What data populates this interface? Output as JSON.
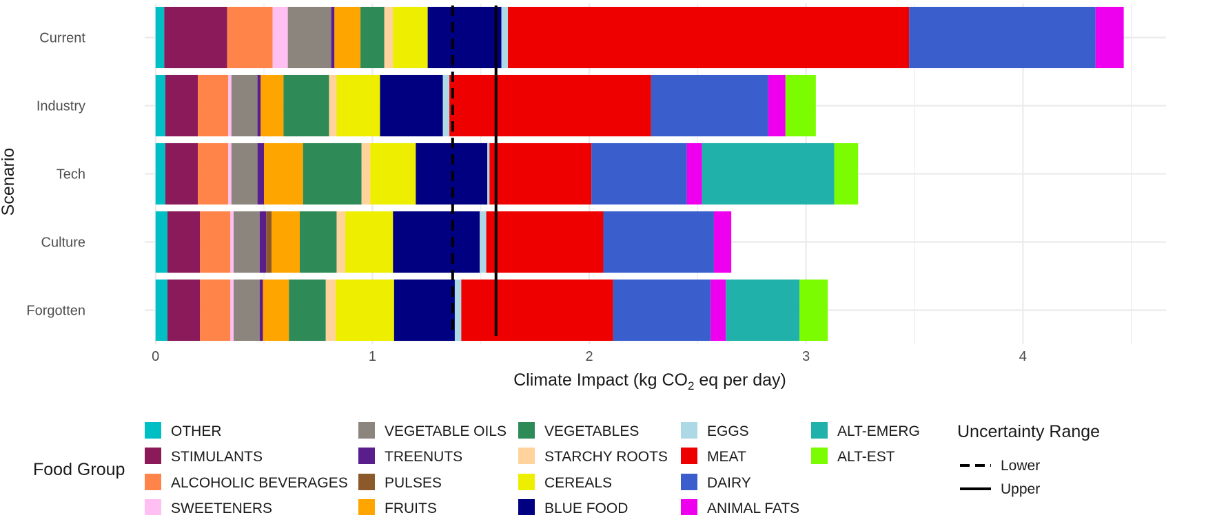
{
  "chart_data": {
    "type": "bar",
    "orientation": "horizontal",
    "stacked": true,
    "xlabel": "Climate Impact (kg CO2 eq per day)",
    "xlabel_parts": {
      "pre": "Climate Impact (kg CO",
      "sub": "2",
      "post": " eq per day)"
    },
    "ylabel": "Scenario",
    "xlim": [
      -0.05,
      4.66
    ],
    "xticks": [
      0,
      1,
      2,
      3,
      4
    ],
    "grid": true,
    "categories": [
      "Current",
      "Industry",
      "Tech",
      "Culture",
      "Forgotten"
    ],
    "series": [
      {
        "name": "OTHER",
        "color": "#00BFC4",
        "values": [
          0.04,
          0.045,
          0.045,
          0.055,
          0.055
        ]
      },
      {
        "name": "STIMULANTS",
        "color": "#8B1A5A",
        "values": [
          0.29,
          0.15,
          0.15,
          0.15,
          0.15
        ]
      },
      {
        "name": "ALCOHOLIC BEVERAGES",
        "color": "#FF8449",
        "values": [
          0.21,
          0.14,
          0.14,
          0.14,
          0.14
        ]
      },
      {
        "name": "SWEETENERS",
        "color": "#FFBFF2",
        "values": [
          0.07,
          0.015,
          0.015,
          0.015,
          0.015
        ]
      },
      {
        "name": "VEGETABLE OILS",
        "color": "#8C857E",
        "values": [
          0.2,
          0.12,
          0.12,
          0.12,
          0.12
        ]
      },
      {
        "name": "TREENUTS",
        "color": "#5A1E8C",
        "values": [
          0.015,
          0.015,
          0.03,
          0.03,
          0.015
        ]
      },
      {
        "name": "PULSES",
        "color": "#8C5A2A",
        "values": [
          0.0,
          0.0,
          0.0,
          0.025,
          0.0
        ]
      },
      {
        "name": "FRUITS",
        "color": "#FFA500",
        "values": [
          0.12,
          0.105,
          0.18,
          0.13,
          0.12
        ]
      },
      {
        "name": "VEGETABLES",
        "color": "#2E8B57",
        "values": [
          0.11,
          0.21,
          0.27,
          0.17,
          0.17
        ]
      },
      {
        "name": "STARCHY ROOTS",
        "color": "#FFD39B",
        "values": [
          0.04,
          0.035,
          0.04,
          0.04,
          0.045
        ]
      },
      {
        "name": "CEREALS",
        "color": "#EEEE00",
        "values": [
          0.16,
          0.2,
          0.21,
          0.22,
          0.27
        ]
      },
      {
        "name": "BLUE FOOD",
        "color": "#000080",
        "values": [
          0.34,
          0.29,
          0.33,
          0.4,
          0.28
        ]
      },
      {
        "name": "EGGS",
        "color": "#ADD8E6",
        "values": [
          0.03,
          0.03,
          0.01,
          0.03,
          0.03
        ]
      },
      {
        "name": "MEAT",
        "color": "#EE0000",
        "values": [
          1.85,
          0.93,
          0.47,
          0.54,
          0.7
        ]
      },
      {
        "name": "DAIRY",
        "color": "#3A5FCD",
        "values": [
          0.86,
          0.54,
          0.44,
          0.51,
          0.45
        ]
      },
      {
        "name": "ANIMAL FATS",
        "color": "#EE00EE",
        "values": [
          0.13,
          0.08,
          0.07,
          0.08,
          0.07
        ]
      },
      {
        "name": "ALT-EMERG",
        "color": "#20B2AA",
        "values": [
          0.0,
          0.0,
          0.61,
          0.0,
          0.34
        ]
      },
      {
        "name": "ALT-EST",
        "color": "#7CFC00",
        "values": [
          0.0,
          0.14,
          0.11,
          0.0,
          0.13
        ]
      }
    ],
    "uncertainty": [
      {
        "name": "Lower",
        "value": 1.37,
        "style": "dashed"
      },
      {
        "name": "Upper",
        "value": 1.57,
        "style": "solid"
      }
    ],
    "legend": {
      "title": "Food Group",
      "position": "bottom-left",
      "columns": [
        [
          "OTHER",
          "STIMULANTS",
          "ALCOHOLIC BEVERAGES",
          "SWEETENERS"
        ],
        [
          "VEGETABLE OILS",
          "TREENUTS",
          "PULSES",
          "FRUITS"
        ],
        [
          "VEGETABLES",
          "STARCHY ROOTS",
          "CEREALS",
          "BLUE FOOD"
        ],
        [
          "EGGS",
          "MEAT",
          "DAIRY",
          "ANIMAL FATS"
        ],
        [
          "ALT-EMERG",
          "ALT-EST"
        ]
      ]
    },
    "uncertainty_legend": {
      "title": "Uncertainty Range",
      "items": [
        "Lower",
        "Upper"
      ]
    }
  }
}
